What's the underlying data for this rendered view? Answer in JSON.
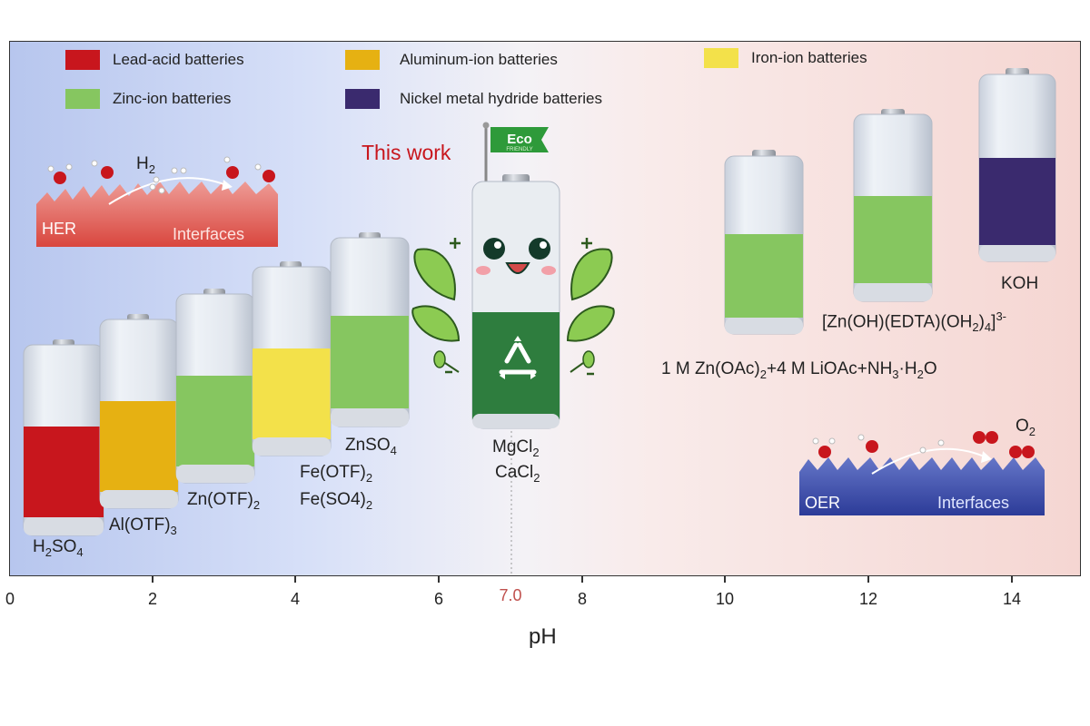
{
  "legend": [
    {
      "label": "Lead-acid batteries",
      "color": "#c8161d"
    },
    {
      "label": "Aluminum-ion batteries",
      "color": "#e6b112"
    },
    {
      "label": "Iron-ion batteries",
      "color": "#f3e14a"
    },
    {
      "label": "Zinc-ion batteries",
      "color": "#86c660"
    },
    {
      "label": "Nickel metal hydride batteries",
      "color": "#3a2a6e"
    }
  ],
  "axis": {
    "xlabel": "pH",
    "ticks": [
      "0",
      "2",
      "4",
      "6",
      "8",
      "10",
      "12",
      "14"
    ],
    "neutral_label": "7.0"
  },
  "labels": {
    "h2so4": "H2SO4",
    "al_otf": "Al(OTF)3",
    "zn_otf": "Zn(OTF)2",
    "fe_otf": "Fe(OTF)2",
    "fe_so4": "Fe(SO4)2",
    "znso4": "ZnSO4",
    "mgcl2": "MgCl2",
    "cacl2": "CaCl2",
    "this_work": "This work",
    "eco": "Eco",
    "friendly": "FRIENDLY",
    "koh": "KOH",
    "zn_edta": "[Zn(OH)(EDTA)(OH2)4]3-",
    "zn_oac": "1 M Zn(OAc)2+4 M LiOAc+NH3·H2O",
    "h2": "H2",
    "o2": "O2",
    "her": "HER",
    "oer": "OER",
    "interfaces_left": "Interfaces",
    "interfaces_right": "Interfaces"
  }
}
